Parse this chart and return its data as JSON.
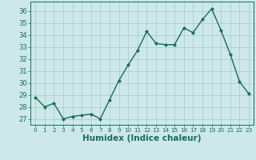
{
  "x": [
    0,
    1,
    2,
    3,
    4,
    5,
    6,
    7,
    8,
    9,
    10,
    11,
    12,
    13,
    14,
    15,
    16,
    17,
    18,
    19,
    20,
    21,
    22,
    23
  ],
  "y": [
    28.8,
    28.0,
    28.3,
    27.0,
    27.2,
    27.3,
    27.4,
    27.0,
    28.6,
    30.2,
    31.5,
    32.7,
    34.3,
    33.3,
    33.2,
    33.2,
    34.6,
    34.2,
    35.3,
    36.2,
    34.4,
    32.4,
    30.1,
    29.1
  ],
  "line_color": "#1a6b5a",
  "marker": "D",
  "marker_size": 2.0,
  "bg_color": "#cce8e8",
  "grid_color": "#b0cccc",
  "xlabel": "Humidex (Indice chaleur)",
  "xlabel_fontsize": 7.5,
  "ylim": [
    26.5,
    36.8
  ],
  "xlim": [
    -0.5,
    23.5
  ],
  "yticks": [
    27,
    28,
    29,
    30,
    31,
    32,
    33,
    34,
    35,
    36
  ],
  "xticks": [
    0,
    1,
    2,
    3,
    4,
    5,
    6,
    7,
    8,
    9,
    10,
    11,
    12,
    13,
    14,
    15,
    16,
    17,
    18,
    19,
    20,
    21,
    22,
    23
  ],
  "tick_label_fontsize": 6.0,
  "xtick_label_fontsize": 5.2,
  "line_width": 1.0
}
